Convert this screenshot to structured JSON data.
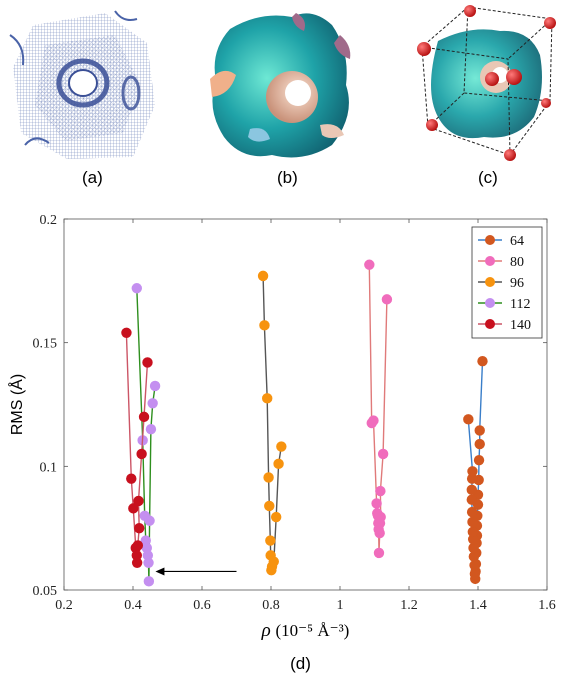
{
  "panels": [
    {
      "label": "(a)",
      "kind": "wireframe-gyroid"
    },
    {
      "label": "(b)",
      "kind": "colored-gyroid-surface"
    },
    {
      "label": "(c)",
      "kind": "gyroid-in-cube-with-atoms"
    }
  ],
  "colors": {
    "wire": "#4a63a8",
    "surface_main": "#1fa3a8",
    "surface_light": "#6ee8d4",
    "surface_inner": "#e9c7b5",
    "surface_back": "#a06a8a",
    "atom": "#d91a1a"
  },
  "chart_data": {
    "type": "line",
    "xlabel_symbol": "ρ",
    "xlabel_unit": "(10⁻⁵ Å⁻³)",
    "ylabel": "RMS (Å)",
    "xlim": [
      0.2,
      1.6
    ],
    "ylim": [
      0.05,
      0.2
    ],
    "xticks": [
      "0.2",
      "0.4",
      "0.6",
      "0.8",
      "1",
      "1.2",
      "1.4",
      "1.6"
    ],
    "xtick_values": [
      0.2,
      0.4,
      0.6,
      0.8,
      1.0,
      1.2,
      1.4,
      1.6
    ],
    "yticks": [
      "0.05",
      "0.1",
      "0.15",
      "0.2"
    ],
    "ytick_values": [
      0.05,
      0.1,
      0.15,
      0.2
    ],
    "legend_position": "top-right",
    "panel_label": "(d)",
    "series": [
      {
        "name": "64",
        "line_color": "#3a7ec9",
        "marker_color": "#d2571f",
        "points": [
          [
            1.413,
            0.1425
          ],
          [
            1.405,
            0.1145
          ],
          [
            1.405,
            0.109
          ],
          [
            1.403,
            0.1025
          ],
          [
            1.402,
            0.0945
          ],
          [
            1.4,
            0.0885
          ],
          [
            1.4,
            0.0845
          ],
          [
            1.398,
            0.08
          ],
          [
            1.397,
            0.076
          ],
          [
            1.397,
            0.072
          ],
          [
            1.396,
            0.069
          ],
          [
            1.395,
            0.065
          ],
          [
            1.394,
            0.0605
          ],
          [
            1.393,
            0.0575
          ],
          [
            1.392,
            0.0545
          ],
          [
            1.391,
            0.0565
          ],
          [
            1.39,
            0.06
          ],
          [
            1.388,
            0.0635
          ],
          [
            1.387,
            0.067
          ],
          [
            1.386,
            0.0705
          ],
          [
            1.385,
            0.0735
          ],
          [
            1.384,
            0.0775
          ],
          [
            1.383,
            0.0815
          ],
          [
            1.382,
            0.0865
          ],
          [
            1.382,
            0.0905
          ],
          [
            1.383,
            0.095
          ],
          [
            1.384,
            0.098
          ],
          [
            1.372,
            0.119
          ]
        ]
      },
      {
        "name": "80",
        "line_color": "#e07a7a",
        "marker_color": "#f06cbc",
        "points": [
          [
            1.136,
            0.1675
          ],
          [
            1.125,
            0.105
          ],
          [
            1.117,
            0.09
          ],
          [
            1.118,
            0.0795
          ],
          [
            1.116,
            0.077
          ],
          [
            1.115,
            0.073
          ],
          [
            1.113,
            0.065
          ],
          [
            1.112,
            0.0745
          ],
          [
            1.111,
            0.077
          ],
          [
            1.11,
            0.08
          ],
          [
            1.108,
            0.081
          ],
          [
            1.106,
            0.085
          ],
          [
            1.097,
            0.1185
          ],
          [
            1.092,
            0.1175
          ],
          [
            1.085,
            0.1815
          ]
        ]
      },
      {
        "name": "96",
        "line_color": "#555555",
        "marker_color": "#f7930f",
        "points": [
          [
            0.777,
            0.177
          ],
          [
            0.781,
            0.157
          ],
          [
            0.789,
            0.1275
          ],
          [
            0.793,
            0.0955
          ],
          [
            0.795,
            0.084
          ],
          [
            0.798,
            0.07
          ],
          [
            0.799,
            0.064
          ],
          [
            0.801,
            0.058
          ],
          [
            0.803,
            0.0595
          ],
          [
            0.808,
            0.0615
          ],
          [
            0.815,
            0.0795
          ],
          [
            0.822,
            0.101
          ],
          [
            0.83,
            0.108
          ]
        ]
      },
      {
        "name": "112",
        "line_color": "#2e8f1e",
        "marker_color": "#c48ff0",
        "points": [
          [
            0.411,
            0.172
          ],
          [
            0.428,
            0.1105
          ],
          [
            0.434,
            0.08
          ],
          [
            0.437,
            0.07
          ],
          [
            0.44,
            0.067
          ],
          [
            0.443,
            0.064
          ],
          [
            0.445,
            0.061
          ],
          [
            0.446,
            0.0535
          ],
          [
            0.448,
            0.078
          ],
          [
            0.452,
            0.115
          ],
          [
            0.457,
            0.1255
          ],
          [
            0.464,
            0.1325
          ]
        ]
      },
      {
        "name": "140",
        "line_color": "#cc5566",
        "marker_color": "#c8101e",
        "points": [
          [
            0.381,
            0.154
          ],
          [
            0.395,
            0.095
          ],
          [
            0.401,
            0.083
          ],
          [
            0.408,
            0.067
          ],
          [
            0.411,
            0.064
          ],
          [
            0.412,
            0.061
          ],
          [
            0.414,
            0.068
          ],
          [
            0.418,
            0.075
          ],
          [
            0.416,
            0.086
          ],
          [
            0.425,
            0.105
          ],
          [
            0.432,
            0.12
          ],
          [
            0.442,
            0.142
          ]
        ]
      }
    ]
  }
}
